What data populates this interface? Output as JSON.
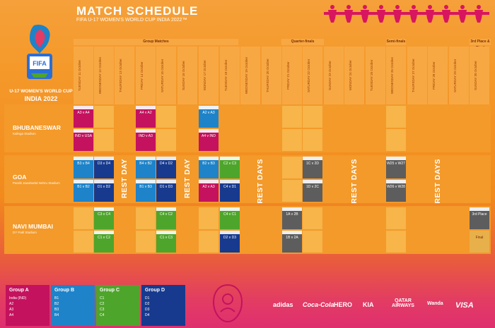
{
  "title": "MATCH SCHEDULE",
  "subtitle": "FIFA U-17 WOMEN'S WORLD CUP INDIA 2022™",
  "logo": {
    "line1": "U-17 WOMEN'S WORLD CUP",
    "line2": "INDIA 2022"
  },
  "stage_labels": {
    "group": "Group Matches",
    "qf": "Quarter-finals",
    "sf": "Semi-finals",
    "final": "3rd Place & Final"
  },
  "days": [
    "TUESDAY 11 October",
    "WEDNESDAY 12 October",
    "THURSDAY 13 October",
    "FRIDAY 14 October",
    "SATURDAY 15 October",
    "SUNDAY 16 October",
    "MONDAY 17 October",
    "TUESDAY 18 October",
    "WEDNESDAY 19 October",
    "THURSDAY 20 October",
    "FRIDAY 21 October",
    "SATURDAY 22 October",
    "SUNDAY 23 October",
    "MONDAY 24 October",
    "TUESDAY 25 October",
    "WEDNESDAY 26 October",
    "THURSDAY 27 October",
    "FRIDAY 28 October",
    "SATURDAY 29 October",
    "SUNDAY 30 October"
  ],
  "venues": [
    {
      "name": "BHUBANESWAR",
      "sub": "Kalinga Stadium"
    },
    {
      "name": "GOA",
      "sub": "Pandit Jawaharlal Nehru Stadium"
    },
    {
      "name": "NAVI MUMBAI",
      "sub": "DY Patil Stadium"
    }
  ],
  "rest_labels": {
    "day": "REST DAY",
    "days": "REST DAYS"
  },
  "matches": {
    "bhu_1": "A3 v A4",
    "bhu_2": "IND v USA",
    "bhu_3": "A4 v A2",
    "bhu_4": "IND v A3",
    "bhu_5": "A2 v A3",
    "bhu_6": "A4 v IND",
    "goa_1": "B3 v B4",
    "goa_2": "D3 v D4",
    "goa_3": "B1 v B2",
    "goa_4": "D1 v D2",
    "goa_5": "B4 v B2",
    "goa_6": "D4 v D2",
    "goa_7": "B1 v B3",
    "goa_8": "D1 v D3",
    "goa_9": "B2 v B3",
    "goa_10": "C2 v C3",
    "goa_11": "A2 v A3",
    "goa_12": "C4 v D1",
    "goa_13": "1C v 2D",
    "goa_14": "1D v 2C",
    "goa_15": "W25 v W27",
    "goa_16": "W26 v W28",
    "nm_1": "C3 v C4",
    "nm_2": "C1 v C2",
    "nm_3": "C4 v C2",
    "nm_4": "C1 v C3",
    "nm_5": "C4 v C1",
    "nm_6": "D2 v D3",
    "nm_7": "1A v 2B",
    "nm_8": "1B v 2A",
    "nm_9": "3rd Place",
    "nm_10": "Final"
  },
  "groups": [
    {
      "name": "Group A",
      "items": [
        "India (IND)",
        "A2",
        "A3",
        "A4"
      ],
      "color": "#c4125e"
    },
    {
      "name": "Group B",
      "items": [
        "B1",
        "B2",
        "B3",
        "B4"
      ],
      "color": "#1e83c9"
    },
    {
      "name": "Group C",
      "items": [
        "C1",
        "C2",
        "C3",
        "C4"
      ],
      "color": "#4ea52b"
    },
    {
      "name": "Group D",
      "items": [
        "D1",
        "D2",
        "D3",
        "D4"
      ],
      "color": "#173a8e"
    }
  ],
  "sponsors": [
    "adidas",
    "Coca-Cola",
    "HERO",
    "KIA",
    "QATAR AIRWAYS",
    "Wanda",
    "VISA"
  ]
}
